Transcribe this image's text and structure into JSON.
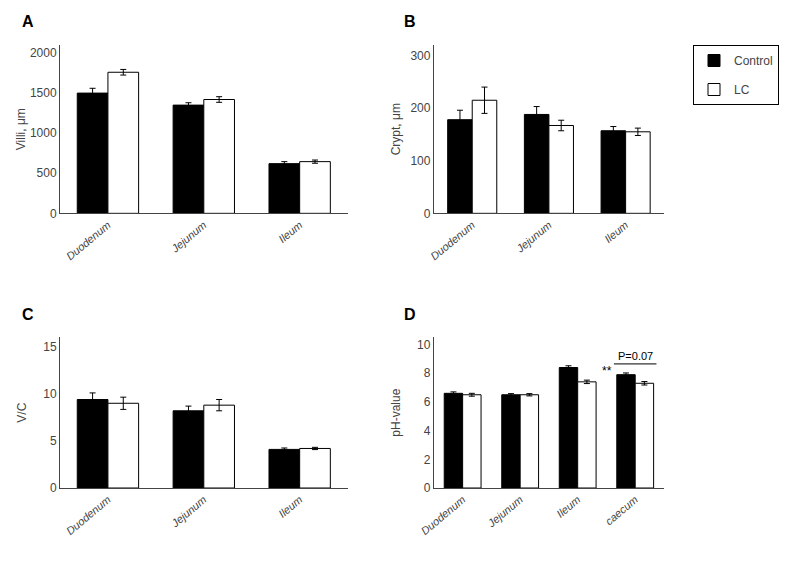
{
  "chart_data": [
    {
      "type": "bar",
      "title": "A",
      "ylabel": "Villi, μm",
      "categories": [
        "Duodenum",
        "Jejunum",
        "Ileum"
      ],
      "series": [
        {
          "name": "Control",
          "color": "#000000",
          "values": [
            1500,
            1350,
            620
          ],
          "errors": [
            60,
            30,
            25
          ]
        },
        {
          "name": "LC",
          "color": "#ffffff",
          "values": [
            1760,
            1420,
            645
          ],
          "errors": [
            35,
            35,
            20
          ]
        }
      ],
      "ylim": [
        0,
        2100
      ],
      "yticks": [
        0,
        500,
        1000,
        1500,
        2000
      ],
      "grid": false
    },
    {
      "type": "bar",
      "title": "B",
      "ylabel": "Crypt, μm",
      "categories": [
        "Duodenum",
        "Jejunum",
        "Ileum"
      ],
      "series": [
        {
          "name": "Control",
          "color": "#000000",
          "values": [
            178,
            188,
            157
          ],
          "errors": [
            18,
            15,
            8
          ]
        },
        {
          "name": "LC",
          "color": "#ffffff",
          "values": [
            215,
            167,
            155
          ],
          "errors": [
            25,
            10,
            7
          ]
        }
      ],
      "ylim": [
        0,
        320
      ],
      "yticks": [
        0,
        100,
        200,
        300
      ],
      "grid": false,
      "legend": "upper right"
    },
    {
      "type": "bar",
      "title": "C",
      "ylabel": "V/C",
      "categories": [
        "Duodenum",
        "Jejunum",
        "Ileum"
      ],
      "series": [
        {
          "name": "Control",
          "color": "#000000",
          "values": [
            9.4,
            8.2,
            4.1
          ],
          "errors": [
            0.7,
            0.5,
            0.15
          ]
        },
        {
          "name": "LC",
          "color": "#ffffff",
          "values": [
            9.0,
            8.8,
            4.2
          ],
          "errors": [
            0.65,
            0.6,
            0.12
          ]
        }
      ],
      "ylim": [
        0,
        16
      ],
      "yticks": [
        0,
        5,
        10,
        15
      ],
      "grid": false
    },
    {
      "type": "bar",
      "title": "D",
      "ylabel": "pH-value",
      "categories": [
        "Duodenum",
        "Jejunum",
        "Ileum",
        "caecum"
      ],
      "series": [
        {
          "name": "Control",
          "color": "#000000",
          "values": [
            6.6,
            6.5,
            8.4,
            7.9
          ],
          "errors": [
            0.1,
            0.08,
            0.12,
            0.12
          ]
        },
        {
          "name": "LC",
          "color": "#ffffff",
          "values": [
            6.5,
            6.5,
            7.4,
            7.3
          ],
          "errors": [
            0.1,
            0.08,
            0.12,
            0.12
          ]
        }
      ],
      "ylim": [
        0,
        10.5
      ],
      "yticks": [
        0,
        2,
        4,
        6,
        8,
        10
      ],
      "grid": false,
      "annotations": [
        {
          "text": "**",
          "x": "Ileum",
          "series": "LC"
        },
        {
          "text": "P=0.07",
          "x": "caecum"
        }
      ]
    }
  ]
}
